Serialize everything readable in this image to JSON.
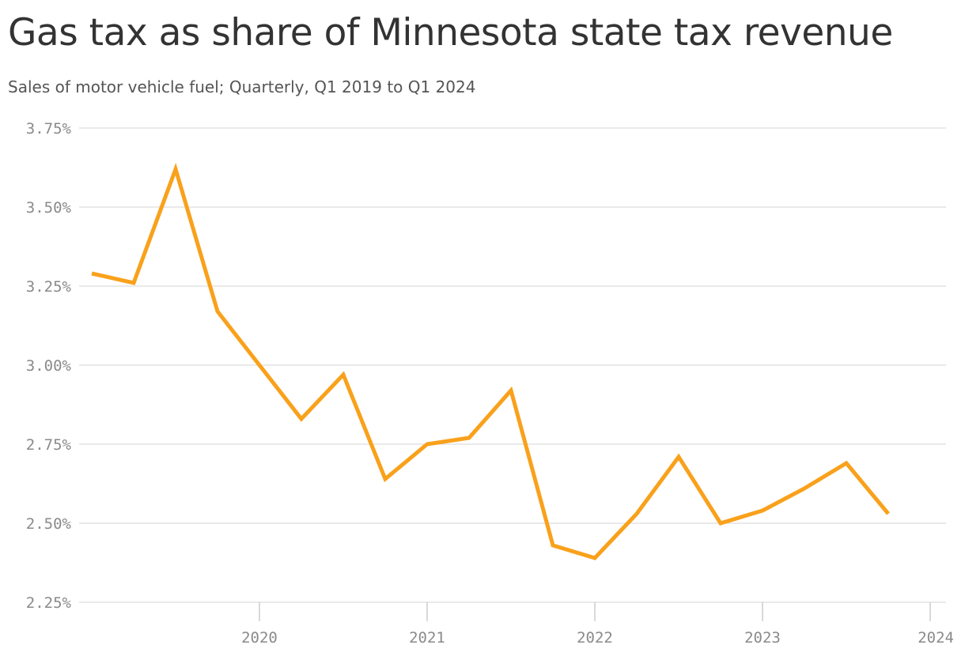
{
  "header": {
    "title": "Gas tax as share of Minnesota state tax revenue",
    "subtitle": "Sales of motor vehicle fuel; Quarterly, Q1 2019 to Q1 2024"
  },
  "colors": {
    "line": "#F9A11B",
    "grid": "#DDDDDD",
    "tick_text": "#8A8A8A"
  },
  "chart_data": {
    "type": "line",
    "title": "Gas tax as share of Minnesota state tax revenue",
    "subtitle": "Sales of motor vehicle fuel; Quarterly, Q1 2019 to Q1 2024",
    "xlabel": "",
    "ylabel": "",
    "grid": true,
    "legend": "none",
    "ylim": [
      2.25,
      3.75
    ],
    "y_ticks": [
      2.25,
      2.5,
      2.75,
      3.0,
      3.25,
      3.5,
      3.75
    ],
    "y_tick_labels": [
      "2.25%",
      "2.50%",
      "2.75%",
      "3.00%",
      "3.25%",
      "3.50%",
      "3.75%"
    ],
    "x_tick_labels": [
      "2020",
      "2021",
      "2022",
      "2023",
      "2024"
    ],
    "x": [
      "2019-Q1",
      "2019-Q2",
      "2019-Q3",
      "2019-Q4",
      "2020-Q1",
      "2020-Q2",
      "2020-Q3",
      "2020-Q4",
      "2021-Q1",
      "2021-Q2",
      "2021-Q3",
      "2021-Q4",
      "2022-Q1",
      "2022-Q2",
      "2022-Q3",
      "2022-Q4",
      "2023-Q1",
      "2023-Q2",
      "2023-Q3",
      "2023-Q4",
      "2024-Q1"
    ],
    "series": [
      {
        "values": [
          3.29,
          3.26,
          3.62,
          3.17,
          3.0,
          2.83,
          2.97,
          2.64,
          2.75,
          2.77,
          2.92,
          2.43,
          2.39,
          2.53,
          2.71,
          2.5,
          2.54,
          2.61,
          2.69,
          2.53,
          null
        ]
      }
    ]
  }
}
